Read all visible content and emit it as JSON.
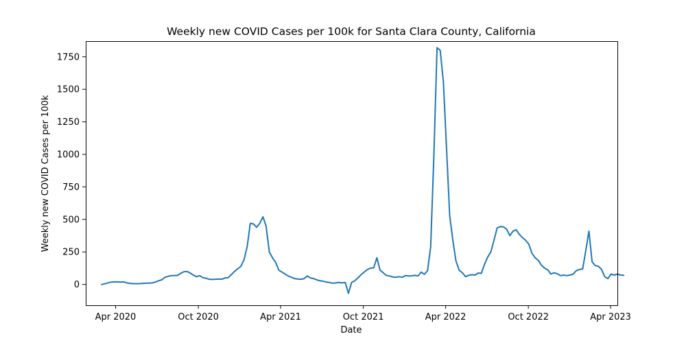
{
  "figure": {
    "background": "#ffffff"
  },
  "chart_data": {
    "type": "line",
    "title": "Weekly new COVID Cases per 100k for Santa Clara County, California",
    "xlabel": "Date",
    "ylabel": "Weekly new COVID Cases per 100k",
    "x_type": "date",
    "xlim": [
      "2020-01-26",
      "2023-04-16"
    ],
    "ylim": [
      -160,
      1870
    ],
    "x_ticks": [
      {
        "date": "2020-04-01",
        "label": "Apr 2020"
      },
      {
        "date": "2020-10-01",
        "label": "Oct 2020"
      },
      {
        "date": "2021-04-01",
        "label": "Apr 2021"
      },
      {
        "date": "2021-10-01",
        "label": "Oct 2021"
      },
      {
        "date": "2022-04-01",
        "label": "Apr 2022"
      },
      {
        "date": "2022-10-01",
        "label": "Oct 2022"
      },
      {
        "date": "2023-04-01",
        "label": "Apr 2023"
      }
    ],
    "y_ticks": [
      0,
      250,
      500,
      750,
      1000,
      1250,
      1500,
      1750
    ],
    "grid": false,
    "legend": false,
    "series": [
      {
        "color": "#1f77b4",
        "points": [
          [
            "2020-03-01",
            0
          ],
          [
            "2020-03-08",
            5
          ],
          [
            "2020-03-15",
            12
          ],
          [
            "2020-03-22",
            18
          ],
          [
            "2020-03-29",
            20
          ],
          [
            "2020-04-05",
            20
          ],
          [
            "2020-04-12",
            18
          ],
          [
            "2020-04-19",
            20
          ],
          [
            "2020-04-26",
            12
          ],
          [
            "2020-05-03",
            8
          ],
          [
            "2020-05-10",
            6
          ],
          [
            "2020-05-17",
            6
          ],
          [
            "2020-05-24",
            6
          ],
          [
            "2020-05-31",
            8
          ],
          [
            "2020-06-07",
            10
          ],
          [
            "2020-06-14",
            10
          ],
          [
            "2020-06-21",
            12
          ],
          [
            "2020-06-28",
            18
          ],
          [
            "2020-07-05",
            28
          ],
          [
            "2020-07-12",
            35
          ],
          [
            "2020-07-19",
            55
          ],
          [
            "2020-07-26",
            62
          ],
          [
            "2020-08-02",
            68
          ],
          [
            "2020-08-09",
            68
          ],
          [
            "2020-08-16",
            70
          ],
          [
            "2020-08-23",
            85
          ],
          [
            "2020-08-30",
            98
          ],
          [
            "2020-09-06",
            100
          ],
          [
            "2020-09-13",
            88
          ],
          [
            "2020-09-20",
            72
          ],
          [
            "2020-09-27",
            60
          ],
          [
            "2020-10-04",
            68
          ],
          [
            "2020-10-11",
            52
          ],
          [
            "2020-10-18",
            48
          ],
          [
            "2020-10-25",
            40
          ],
          [
            "2020-11-01",
            38
          ],
          [
            "2020-11-08",
            40
          ],
          [
            "2020-11-15",
            42
          ],
          [
            "2020-11-22",
            40
          ],
          [
            "2020-11-29",
            50
          ],
          [
            "2020-12-06",
            52
          ],
          [
            "2020-12-13",
            75
          ],
          [
            "2020-12-20",
            100
          ],
          [
            "2020-12-27",
            120
          ],
          [
            "2021-01-03",
            138
          ],
          [
            "2021-01-10",
            190
          ],
          [
            "2021-01-17",
            290
          ],
          [
            "2021-01-24",
            470
          ],
          [
            "2021-01-31",
            465
          ],
          [
            "2021-02-07",
            440
          ],
          [
            "2021-02-14",
            470
          ],
          [
            "2021-02-21",
            520
          ],
          [
            "2021-02-28",
            448
          ],
          [
            "2021-03-07",
            250
          ],
          [
            "2021-03-14",
            205
          ],
          [
            "2021-03-21",
            170
          ],
          [
            "2021-03-28",
            110
          ],
          [
            "2021-04-04",
            95
          ],
          [
            "2021-04-11",
            80
          ],
          [
            "2021-04-18",
            65
          ],
          [
            "2021-04-25",
            55
          ],
          [
            "2021-05-02",
            45
          ],
          [
            "2021-05-09",
            42
          ],
          [
            "2021-05-16",
            40
          ],
          [
            "2021-05-23",
            45
          ],
          [
            "2021-05-30",
            65
          ],
          [
            "2021-06-06",
            50
          ],
          [
            "2021-06-13",
            45
          ],
          [
            "2021-06-20",
            35
          ],
          [
            "2021-06-27",
            28
          ],
          [
            "2021-07-04",
            25
          ],
          [
            "2021-07-11",
            18
          ],
          [
            "2021-07-18",
            15
          ],
          [
            "2021-07-25",
            10
          ],
          [
            "2021-08-01",
            12
          ],
          [
            "2021-08-08",
            15
          ],
          [
            "2021-08-15",
            12
          ],
          [
            "2021-08-22",
            15
          ],
          [
            "2021-08-29",
            -68
          ],
          [
            "2021-09-05",
            15
          ],
          [
            "2021-09-12",
            28
          ],
          [
            "2021-09-19",
            50
          ],
          [
            "2021-09-26",
            75
          ],
          [
            "2021-10-03",
            95
          ],
          [
            "2021-10-10",
            115
          ],
          [
            "2021-10-17",
            125
          ],
          [
            "2021-10-24",
            128
          ],
          [
            "2021-10-31",
            205
          ],
          [
            "2021-11-07",
            110
          ],
          [
            "2021-11-14",
            90
          ],
          [
            "2021-11-21",
            70
          ],
          [
            "2021-11-28",
            65
          ],
          [
            "2021-12-05",
            58
          ],
          [
            "2021-12-12",
            55
          ],
          [
            "2021-12-19",
            60
          ],
          [
            "2021-12-26",
            55
          ],
          [
            "2022-01-02",
            68
          ],
          [
            "2022-01-09",
            65
          ],
          [
            "2022-01-16",
            66
          ],
          [
            "2022-01-23",
            70
          ],
          [
            "2022-01-30",
            65
          ],
          [
            "2022-02-06",
            95
          ],
          [
            "2022-02-13",
            78
          ],
          [
            "2022-02-20",
            105
          ],
          [
            "2022-02-27",
            290
          ],
          [
            "2022-03-06",
            980
          ],
          [
            "2022-03-13",
            1820
          ],
          [
            "2022-03-20",
            1800
          ],
          [
            "2022-03-27",
            1560
          ],
          [
            "2022-04-03",
            1050
          ],
          [
            "2022-04-10",
            530
          ],
          [
            "2022-04-17",
            340
          ],
          [
            "2022-04-24",
            180
          ],
          [
            "2022-05-01",
            110
          ],
          [
            "2022-05-08",
            90
          ],
          [
            "2022-05-15",
            60
          ],
          [
            "2022-05-22",
            70
          ],
          [
            "2022-05-29",
            75
          ],
          [
            "2022-06-05",
            72
          ],
          [
            "2022-06-12",
            88
          ],
          [
            "2022-06-19",
            85
          ],
          [
            "2022-06-26",
            155
          ],
          [
            "2022-07-03",
            210
          ],
          [
            "2022-07-10",
            250
          ],
          [
            "2022-07-17",
            340
          ],
          [
            "2022-07-24",
            435
          ],
          [
            "2022-07-31",
            445
          ],
          [
            "2022-08-07",
            442
          ],
          [
            "2022-08-14",
            425
          ],
          [
            "2022-08-21",
            375
          ],
          [
            "2022-08-28",
            410
          ],
          [
            "2022-09-04",
            420
          ],
          [
            "2022-09-11",
            385
          ],
          [
            "2022-09-18",
            360
          ],
          [
            "2022-09-25",
            340
          ],
          [
            "2022-10-02",
            310
          ],
          [
            "2022-10-09",
            240
          ],
          [
            "2022-10-16",
            205
          ],
          [
            "2022-10-23",
            185
          ],
          [
            "2022-10-30",
            148
          ],
          [
            "2022-11-06",
            125
          ],
          [
            "2022-11-13",
            112
          ],
          [
            "2022-11-20",
            80
          ],
          [
            "2022-11-27",
            90
          ],
          [
            "2022-12-04",
            82
          ],
          [
            "2022-12-11",
            68
          ],
          [
            "2022-12-18",
            72
          ],
          [
            "2022-12-25",
            68
          ],
          [
            "2023-01-01",
            72
          ],
          [
            "2023-01-08",
            80
          ],
          [
            "2023-01-15",
            105
          ],
          [
            "2023-01-22",
            115
          ],
          [
            "2023-01-29",
            118
          ],
          [
            "2023-02-05",
            260
          ],
          [
            "2023-02-12",
            410
          ],
          [
            "2023-02-19",
            175
          ],
          [
            "2023-02-26",
            145
          ],
          [
            "2023-03-05",
            140
          ],
          [
            "2023-03-12",
            115
          ],
          [
            "2023-03-19",
            60
          ],
          [
            "2023-03-26",
            45
          ],
          [
            "2023-04-02",
            80
          ],
          [
            "2023-04-09",
            72
          ],
          [
            "2023-04-16",
            80
          ],
          [
            "2023-04-23",
            72
          ],
          [
            "2023-04-30",
            70
          ]
        ]
      }
    ]
  }
}
